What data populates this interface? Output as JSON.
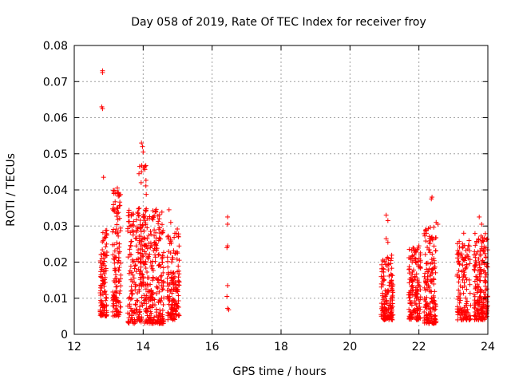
{
  "chart_data": {
    "type": "scatter",
    "title": "Day 058 of 2019, Rate Of TEC Index for receiver froy",
    "xlabel": "GPS time / hours",
    "ylabel": "ROTI / TECUs",
    "xlim": [
      12,
      24
    ],
    "ylim": [
      0,
      0.08
    ],
    "xticks": [
      12,
      14,
      16,
      18,
      20,
      22,
      24
    ],
    "yticks": [
      0,
      0.01,
      0.02,
      0.03,
      0.04,
      0.05,
      0.06,
      0.07,
      0.08
    ],
    "ytick_labels": [
      "0",
      "0.01",
      "0.02",
      "0.03",
      "0.04",
      "0.05",
      "0.06",
      "0.07",
      "0.08"
    ],
    "grid": true,
    "marker": "+",
    "color": "#ff0000",
    "clusters": [
      {
        "x_range": [
          12.75,
          12.95
        ],
        "y_range": [
          0.005,
          0.03
        ],
        "count": 110
      },
      {
        "x_range": [
          13.1,
          13.35
        ],
        "y_range": [
          0.005,
          0.04
        ],
        "count": 130
      },
      {
        "x_range": [
          13.55,
          14.6
        ],
        "y_range": [
          0.003,
          0.035
        ],
        "count": 420
      },
      {
        "x_range": [
          13.85,
          14.1
        ],
        "y_range": [
          0.02,
          0.048
        ],
        "count": 40
      },
      {
        "x_range": [
          14.7,
          14.95
        ],
        "y_range": [
          0.004,
          0.028
        ],
        "count": 110
      },
      {
        "x_range": [
          14.95,
          15.05
        ],
        "y_range": [
          0.005,
          0.03
        ],
        "count": 40
      },
      {
        "x_range": [
          20.9,
          21.25
        ],
        "y_range": [
          0.004,
          0.022
        ],
        "count": 150
      },
      {
        "x_range": [
          21.7,
          22.05
        ],
        "y_range": [
          0.004,
          0.024
        ],
        "count": 150
      },
      {
        "x_range": [
          22.15,
          22.5
        ],
        "y_range": [
          0.003,
          0.03
        ],
        "count": 170
      },
      {
        "x_range": [
          23.1,
          23.5
        ],
        "y_range": [
          0.004,
          0.026
        ],
        "count": 130
      },
      {
        "x_range": [
          23.6,
          24.0
        ],
        "y_range": [
          0.004,
          0.028
        ],
        "count": 200
      }
    ],
    "points": [
      [
        12.82,
        0.073
      ],
      [
        12.82,
        0.0725
      ],
      [
        12.8,
        0.063
      ],
      [
        12.82,
        0.0625
      ],
      [
        12.85,
        0.0435
      ],
      [
        13.95,
        0.053
      ],
      [
        13.98,
        0.052
      ],
      [
        14.0,
        0.0505
      ],
      [
        14.05,
        0.0465
      ],
      [
        13.95,
        0.045
      ],
      [
        16.45,
        0.0325
      ],
      [
        16.45,
        0.0305
      ],
      [
        16.45,
        0.0245
      ],
      [
        16.43,
        0.024
      ],
      [
        16.45,
        0.0135
      ],
      [
        16.43,
        0.0105
      ],
      [
        16.45,
        0.0072
      ],
      [
        16.48,
        0.0068
      ],
      [
        22.38,
        0.038
      ],
      [
        22.36,
        0.0375
      ],
      [
        21.05,
        0.033
      ],
      [
        21.1,
        0.0315
      ],
      [
        23.75,
        0.0325
      ],
      [
        23.82,
        0.0305
      ],
      [
        21.05,
        0.0265
      ],
      [
        21.1,
        0.0255
      ],
      [
        22.5,
        0.031
      ],
      [
        22.55,
        0.0305
      ],
      [
        13.25,
        0.0405
      ],
      [
        13.2,
        0.039
      ],
      [
        14.75,
        0.0345
      ],
      [
        14.8,
        0.031
      ],
      [
        23.3,
        0.028
      ],
      [
        23.95,
        0.024
      ],
      [
        22.0,
        0.0245
      ],
      [
        21.95,
        0.0235
      ]
    ]
  }
}
